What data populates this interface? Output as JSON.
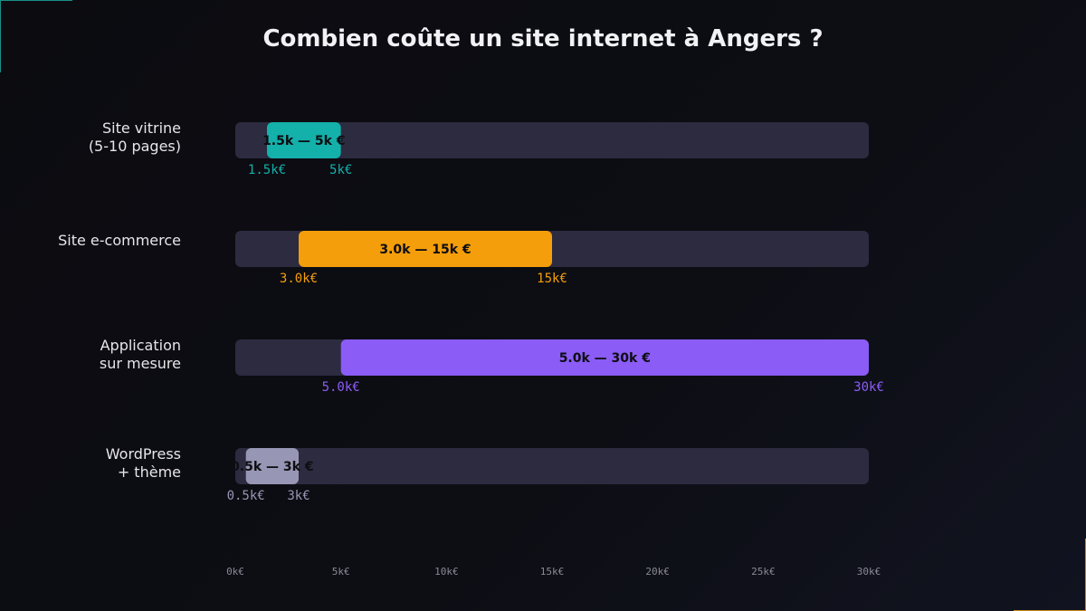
{
  "chart_data": {
    "type": "bar",
    "orientation": "horizontal-range",
    "title": "Combien coûte un site internet à Angers ?",
    "xlim": [
      0,
      30
    ],
    "x_ticks": [
      0,
      5,
      10,
      15,
      20,
      25,
      30
    ],
    "x_tick_labels": [
      "0k€",
      "5k€",
      "10k€",
      "15k€",
      "20k€",
      "25k€",
      "30k€"
    ],
    "grid": false,
    "track_color": "#2c2b40",
    "categories": [
      {
        "label": [
          "Site vitrine",
          "(5-10 pages)"
        ],
        "min": 1.5,
        "max": 5,
        "bar_label": "1.5k — 5k €",
        "min_label": "1.5k€",
        "max_label": "5k€",
        "color": "#14b0aa"
      },
      {
        "label": [
          "Site e-commerce"
        ],
        "min": 3,
        "max": 15,
        "bar_label": "3.0k — 15k €",
        "min_label": "3.0k€",
        "max_label": "15k€",
        "color": "#f59e0b"
      },
      {
        "label": [
          "Application",
          "sur mesure"
        ],
        "min": 5,
        "max": 30,
        "bar_label": "5.0k — 30k €",
        "min_label": "5.0k€",
        "max_label": "30k€",
        "color": "#8b5cf6"
      },
      {
        "label": [
          "WordPress",
          "+ thème"
        ],
        "min": 0.5,
        "max": 3,
        "bar_label": "0.5k — 3k €",
        "min_label": "0.5k€",
        "max_label": "3k€",
        "color": "#9796b4"
      }
    ]
  }
}
